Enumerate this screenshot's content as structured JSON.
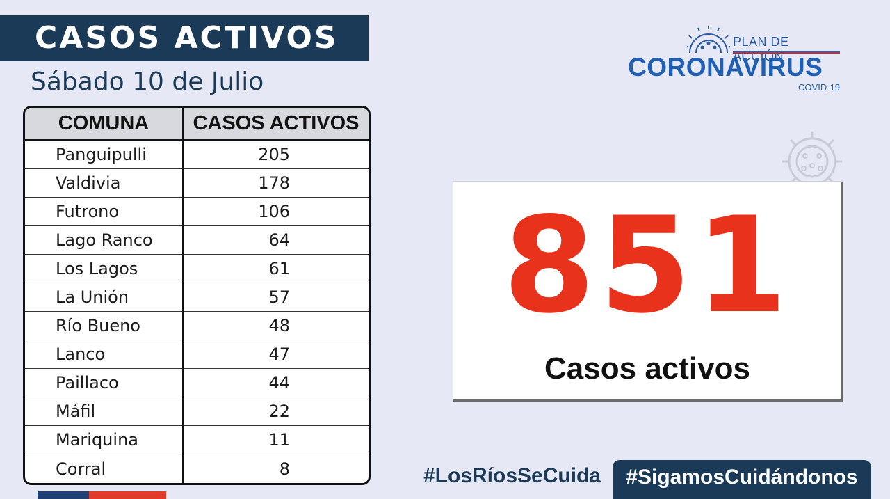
{
  "header": {
    "title": "CASOS ACTIVOS",
    "subtitle": "Sábado 10 de Julio"
  },
  "table": {
    "columns": [
      "COMUNA",
      "CASOS ACTIVOS"
    ],
    "rows": [
      {
        "comuna": "Panguipulli",
        "casos": "205"
      },
      {
        "comuna": "Valdivia",
        "casos": "178"
      },
      {
        "comuna": "Futrono",
        "casos": "106"
      },
      {
        "comuna": "Lago Ranco",
        "casos": "64"
      },
      {
        "comuna": "Los Lagos",
        "casos": "61"
      },
      {
        "comuna": "La Unión",
        "casos": "57"
      },
      {
        "comuna": "Río Bueno",
        "casos": "48"
      },
      {
        "comuna": "Lanco",
        "casos": "47"
      },
      {
        "comuna": "Paillaco",
        "casos": "44"
      },
      {
        "comuna": "Máfil",
        "casos": "22"
      },
      {
        "comuna": "Mariquina",
        "casos": "11"
      },
      {
        "comuna": "Corral",
        "casos": "8"
      }
    ]
  },
  "logo": {
    "plan": "PLAN DE ACCIÓN",
    "main": "CORONAVIRUS",
    "sub": "COVID-19",
    "icon": "virus-icon"
  },
  "total": {
    "number": "851",
    "label": "Casos activos"
  },
  "hashtags": [
    "#LosRíosSeCuida",
    "#SigamosCuidándonos"
  ],
  "colors": {
    "navy": "#1a3a57",
    "accent_red": "#e8321c",
    "brand_blue": "#1f60b5",
    "background": "#e6e8f5"
  }
}
